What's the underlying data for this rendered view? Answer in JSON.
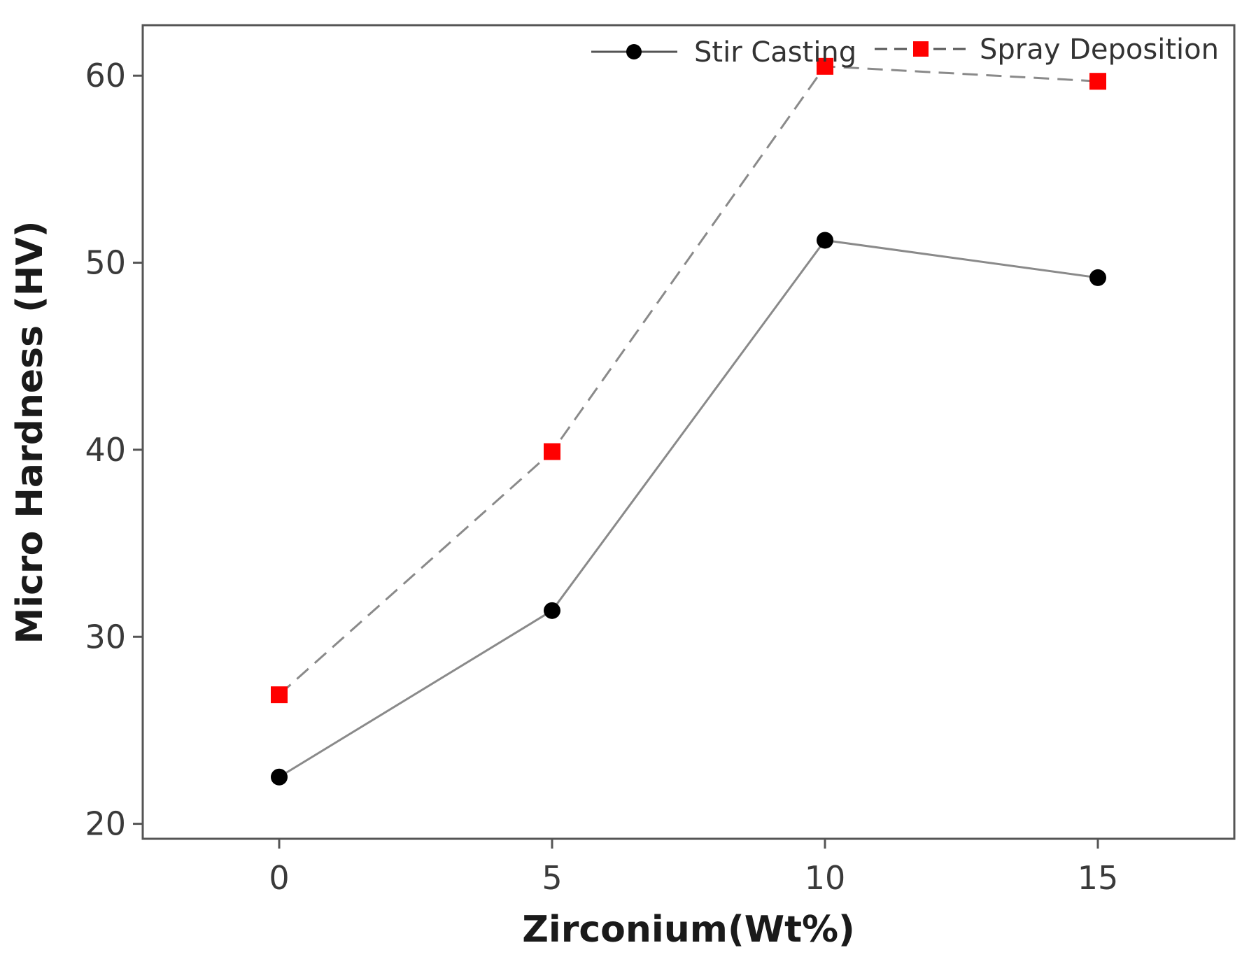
{
  "chart_data": {
    "type": "line",
    "title": "",
    "xlabel": "Zirconium(Wt%)",
    "ylabel": "Micro Hardness (HV)",
    "x": [
      0,
      5,
      10,
      15
    ],
    "xticks": [
      "0",
      "5",
      "10",
      "15"
    ],
    "yticks": [
      "20",
      "30",
      "40",
      "50",
      "60"
    ],
    "xlim": [
      -2.5,
      17.5
    ],
    "ylim": [
      19.2,
      62.7
    ],
    "grid": false,
    "legend_position": "top-right",
    "series": [
      {
        "name": "Stir Casting",
        "values": [
          22.5,
          31.4,
          51.2,
          49.2
        ],
        "color": "#000000",
        "line_color": "#8a8a8a",
        "line_style": "solid",
        "marker": "circle"
      },
      {
        "name": "Spray Deposition",
        "values": [
          26.9,
          39.9,
          60.5,
          59.7
        ],
        "color": "#ff0000",
        "line_color": "#8a8a8a",
        "line_style": "dashed",
        "marker": "square"
      }
    ]
  }
}
